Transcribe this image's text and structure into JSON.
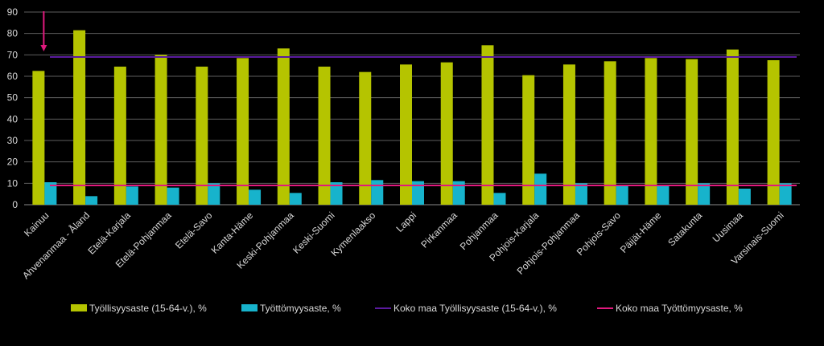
{
  "chart_data": {
    "type": "bar",
    "categories": [
      "Kainuu",
      "Ahvenanmaa - Åland",
      "Etelä-Karjala",
      "Etelä-Pohjanmaa",
      "Etelä-Savo",
      "Kanta-Häme",
      "Keski-Pohjanmaa",
      "Keski-Suomi",
      "Kymenlaakso",
      "Lappi",
      "Pirkanmaa",
      "Pohjanmaa",
      "Pohjois-Karjala",
      "Pohjois-Pohjanmaa",
      "Pohjois-Savo",
      "Päijät-Häme",
      "Satakunta",
      "Uusimaa",
      "Varsinais-Suomi"
    ],
    "series": [
      {
        "name": "Työllisyysaste (15-64-v.), %",
        "kind": "bar",
        "color": "#b5c400",
        "values": [
          62.5,
          81.5,
          64.5,
          70,
          64.5,
          68.5,
          73,
          64.5,
          62,
          65.5,
          66.5,
          74.5,
          60.5,
          65.5,
          67,
          68.5,
          68,
          72.5,
          67.5
        ]
      },
      {
        "name": "Työttömyysaste, %",
        "kind": "bar",
        "color": "#17b3cc",
        "values": [
          10.5,
          4,
          8.5,
          8,
          10,
          7,
          5.5,
          10.5,
          11.5,
          11,
          11,
          5.5,
          14.5,
          10,
          9,
          9,
          10,
          7.5,
          10
        ]
      },
      {
        "name": "Koko maa Työllisyysaste (15-64-v.), %",
        "kind": "line",
        "color": "#5a1a9e",
        "value": 69
      },
      {
        "name": "Koko maa Työttömyysaste, %",
        "kind": "line",
        "color": "#e0197d",
        "value": 9
      }
    ],
    "y_ticks": [
      0,
      10,
      20,
      30,
      40,
      50,
      60,
      70,
      80,
      90
    ],
    "ylim": [
      0,
      90
    ],
    "grid": true,
    "legend": "bottom",
    "annotation": {
      "type": "arrow",
      "category": "Kainuu",
      "color": "#e0197d"
    }
  }
}
